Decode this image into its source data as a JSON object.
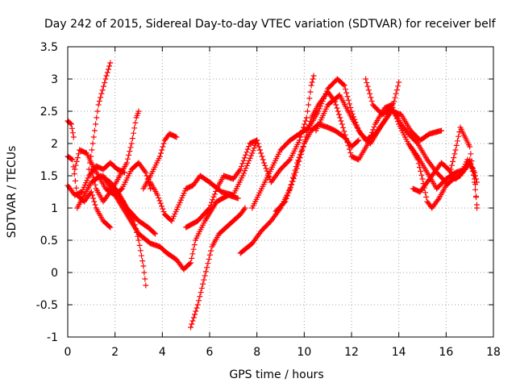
{
  "chart_data": {
    "type": "scatter",
    "title": "Day 242 of 2015, Sidereal Day-to-day VTEC variation (SDTVAR) for receiver belf",
    "xlabel": "GPS time / hours",
    "ylabel": "SDTVAR / TECUs",
    "xlim": [
      0,
      18
    ],
    "ylim": [
      -1,
      3.5
    ],
    "xticks": [
      "0",
      "2",
      "4",
      "6",
      "8",
      "10",
      "12",
      "14",
      "16",
      "18"
    ],
    "yticks": [
      "-1",
      "-0.5",
      "0",
      "0.5",
      "1",
      "1.5",
      "2",
      "2.5",
      "3",
      "3.5"
    ],
    "grid": true,
    "legend": "none",
    "marker": "plus",
    "color": "#ff0000",
    "series": [
      {
        "points": [
          [
            0.0,
            1.8
          ],
          [
            0.2,
            1.75
          ],
          [
            0.4,
            1.2
          ],
          [
            0.7,
            1.1
          ],
          [
            1.0,
            1.25
          ],
          [
            1.2,
            1.0
          ],
          [
            1.5,
            0.8
          ],
          [
            1.8,
            0.7
          ]
        ]
      },
      {
        "points": [
          [
            0.0,
            1.35
          ],
          [
            0.3,
            1.2
          ],
          [
            0.6,
            1.25
          ],
          [
            0.9,
            1.5
          ],
          [
            1.2,
            1.65
          ],
          [
            1.5,
            1.6
          ],
          [
            1.8,
            1.7
          ],
          [
            2.1,
            1.6
          ],
          [
            2.4,
            1.55
          ]
        ]
      },
      {
        "points": [
          [
            0.0,
            2.35
          ],
          [
            0.15,
            2.3
          ],
          [
            0.25,
            2.1
          ]
        ]
      },
      {
        "points": [
          [
            0.3,
            1.6
          ],
          [
            0.5,
            1.9
          ],
          [
            0.8,
            1.85
          ],
          [
            1.0,
            1.7
          ],
          [
            1.3,
            1.5
          ],
          [
            1.6,
            1.3
          ],
          [
            2.0,
            1.2
          ],
          [
            2.3,
            1.3
          ],
          [
            2.7,
            1.6
          ],
          [
            3.0,
            1.7
          ],
          [
            3.3,
            1.55
          ],
          [
            3.5,
            1.3
          ]
        ]
      },
      {
        "points": [
          [
            0.9,
            1.6
          ],
          [
            1.1,
            2.1
          ],
          [
            1.3,
            2.6
          ],
          [
            1.6,
            3.0
          ],
          [
            1.8,
            3.25
          ]
        ]
      },
      {
        "points": [
          [
            1.0,
            1.6
          ],
          [
            1.2,
            1.3
          ],
          [
            1.5,
            1.1
          ],
          [
            1.9,
            1.3
          ],
          [
            2.2,
            1.5
          ],
          [
            2.5,
            1.7
          ],
          [
            2.7,
            2.0
          ],
          [
            2.9,
            2.4
          ],
          [
            3.0,
            2.5
          ]
        ]
      },
      {
        "points": [
          [
            0.4,
            1.0
          ],
          [
            0.7,
            1.2
          ],
          [
            1.0,
            1.4
          ],
          [
            1.4,
            1.5
          ],
          [
            1.8,
            1.4
          ],
          [
            2.2,
            1.2
          ],
          [
            2.5,
            1.0
          ],
          [
            2.8,
            0.8
          ],
          [
            3.0,
            0.5
          ],
          [
            3.2,
            0.1
          ],
          [
            3.3,
            -0.2
          ]
        ]
      },
      {
        "points": [
          [
            1.5,
            1.5
          ],
          [
            2.0,
            1.2
          ],
          [
            2.5,
            0.9
          ],
          [
            3.0,
            0.6
          ],
          [
            3.5,
            0.45
          ],
          [
            3.9,
            0.4
          ],
          [
            4.2,
            0.3
          ],
          [
            4.6,
            0.2
          ],
          [
            4.9,
            0.05
          ],
          [
            5.2,
            0.15
          ],
          [
            5.4,
            0.5
          ],
          [
            5.8,
            0.8
          ],
          [
            6.3,
            1.1
          ],
          [
            6.8,
            1.2
          ],
          [
            7.2,
            1.15
          ]
        ]
      },
      {
        "points": [
          [
            2.0,
            1.3
          ],
          [
            2.5,
            1.0
          ],
          [
            3.0,
            0.8
          ],
          [
            3.4,
            0.7
          ],
          [
            3.7,
            0.6
          ]
        ]
      },
      {
        "points": [
          [
            3.2,
            1.3
          ],
          [
            3.5,
            1.5
          ],
          [
            3.9,
            1.8
          ],
          [
            4.1,
            2.05
          ],
          [
            4.3,
            2.15
          ],
          [
            4.6,
            2.1
          ]
        ]
      },
      {
        "points": [
          [
            3.5,
            1.4
          ],
          [
            3.8,
            1.2
          ],
          [
            4.1,
            0.9
          ],
          [
            4.4,
            0.8
          ],
          [
            4.7,
            1.05
          ],
          [
            5.0,
            1.3
          ],
          [
            5.3,
            1.35
          ],
          [
            5.6,
            1.5
          ],
          [
            6.0,
            1.4
          ],
          [
            6.5,
            1.25
          ],
          [
            7.0,
            1.2
          ],
          [
            7.4,
            1.5
          ],
          [
            7.8,
            1.85
          ],
          [
            8.0,
            2.05
          ]
        ]
      },
      {
        "points": [
          [
            5.2,
            -0.85
          ],
          [
            5.5,
            -0.5
          ],
          [
            5.8,
            -0.05
          ],
          [
            6.1,
            0.4
          ],
          [
            6.4,
            0.6
          ],
          [
            6.7,
            0.7
          ],
          [
            7.0,
            0.8
          ],
          [
            7.3,
            0.9
          ],
          [
            7.5,
            1.0
          ]
        ]
      },
      {
        "points": [
          [
            5.0,
            0.7
          ],
          [
            5.5,
            0.8
          ],
          [
            6.0,
            1.0
          ],
          [
            6.3,
            1.3
          ],
          [
            6.6,
            1.5
          ],
          [
            7.0,
            1.45
          ],
          [
            7.3,
            1.6
          ],
          [
            7.7,
            2.0
          ],
          [
            8.0,
            2.05
          ],
          [
            8.3,
            1.7
          ],
          [
            8.6,
            1.4
          ],
          [
            9.0,
            1.6
          ],
          [
            9.4,
            1.75
          ],
          [
            9.8,
            2.05
          ],
          [
            10.1,
            2.4
          ],
          [
            10.3,
            2.9
          ],
          [
            10.4,
            3.05
          ]
        ]
      },
      {
        "points": [
          [
            7.3,
            0.3
          ],
          [
            7.8,
            0.45
          ],
          [
            8.2,
            0.65
          ],
          [
            8.6,
            0.8
          ],
          [
            9.0,
            1.0
          ],
          [
            9.4,
            1.3
          ],
          [
            9.7,
            1.7
          ],
          [
            10.0,
            2.0
          ],
          [
            10.3,
            2.2
          ],
          [
            10.6,
            2.3
          ],
          [
            11.0,
            2.25
          ],
          [
            11.3,
            2.2
          ],
          [
            11.7,
            2.1
          ],
          [
            12.0,
            1.95
          ],
          [
            12.3,
            2.05
          ]
        ]
      },
      {
        "points": [
          [
            7.8,
            1.0
          ],
          [
            8.2,
            1.3
          ],
          [
            8.6,
            1.6
          ],
          [
            9.0,
            1.9
          ],
          [
            9.4,
            2.05
          ],
          [
            9.8,
            2.15
          ],
          [
            10.2,
            2.25
          ],
          [
            10.6,
            2.5
          ],
          [
            11.0,
            2.85
          ],
          [
            11.4,
            3.0
          ],
          [
            11.7,
            2.9
          ],
          [
            12.0,
            2.5
          ],
          [
            12.3,
            2.2
          ],
          [
            12.6,
            2.05
          ],
          [
            13.0,
            2.15
          ],
          [
            13.4,
            2.35
          ],
          [
            13.8,
            2.65
          ],
          [
            14.0,
            2.95
          ]
        ]
      },
      {
        "points": [
          [
            8.8,
            0.95
          ],
          [
            9.2,
            1.1
          ],
          [
            9.6,
            1.5
          ],
          [
            10.0,
            2.0
          ],
          [
            10.3,
            2.4
          ],
          [
            10.6,
            2.6
          ],
          [
            11.0,
            2.8
          ],
          [
            11.3,
            2.65
          ],
          [
            11.6,
            2.3
          ],
          [
            12.0,
            1.8
          ],
          [
            12.3,
            1.75
          ],
          [
            12.7,
            2.0
          ],
          [
            13.0,
            2.3
          ],
          [
            13.4,
            2.55
          ],
          [
            13.7,
            2.6
          ],
          [
            14.0,
            2.3
          ],
          [
            14.4,
            2.0
          ],
          [
            14.8,
            1.8
          ],
          [
            15.2,
            1.55
          ],
          [
            15.6,
            1.3
          ],
          [
            16.0,
            1.45
          ],
          [
            16.4,
            1.55
          ],
          [
            16.8,
            1.6
          ],
          [
            17.0,
            1.75
          ],
          [
            17.2,
            1.45
          ]
        ]
      },
      {
        "points": [
          [
            10.5,
            2.2
          ],
          [
            11.0,
            2.6
          ],
          [
            11.5,
            2.75
          ],
          [
            12.0,
            2.4
          ],
          [
            12.4,
            2.15
          ],
          [
            12.8,
            2.0
          ],
          [
            13.3,
            2.3
          ],
          [
            13.7,
            2.5
          ],
          [
            14.1,
            2.45
          ],
          [
            14.5,
            2.2
          ],
          [
            14.9,
            2.05
          ],
          [
            15.3,
            2.15
          ],
          [
            15.8,
            2.2
          ]
        ]
      },
      {
        "points": [
          [
            12.6,
            3.0
          ],
          [
            12.9,
            2.6
          ],
          [
            13.3,
            2.45
          ],
          [
            13.7,
            2.55
          ],
          [
            14.1,
            2.3
          ],
          [
            14.4,
            2.15
          ],
          [
            14.8,
            2.0
          ],
          [
            15.2,
            1.75
          ],
          [
            15.6,
            1.55
          ],
          [
            16.0,
            1.4
          ]
        ]
      },
      {
        "points": [
          [
            14.5,
            1.95
          ],
          [
            14.8,
            1.75
          ],
          [
            15.0,
            1.45
          ],
          [
            15.2,
            1.1
          ],
          [
            15.4,
            1.0
          ],
          [
            15.7,
            1.15
          ],
          [
            16.0,
            1.35
          ],
          [
            16.3,
            1.45
          ],
          [
            16.6,
            1.5
          ],
          [
            16.9,
            1.75
          ],
          [
            17.2,
            1.55
          ],
          [
            17.3,
            1.0
          ]
        ]
      },
      {
        "points": [
          [
            14.6,
            1.3
          ],
          [
            14.9,
            1.25
          ],
          [
            15.2,
            1.4
          ],
          [
            15.5,
            1.55
          ],
          [
            15.8,
            1.7
          ],
          [
            16.1,
            1.6
          ],
          [
            16.4,
            1.45
          ],
          [
            16.7,
            1.55
          ],
          [
            17.0,
            1.7
          ],
          [
            17.2,
            1.55
          ],
          [
            17.3,
            1.4
          ]
        ]
      },
      {
        "points": [
          [
            16.2,
            1.6
          ],
          [
            16.4,
            1.9
          ],
          [
            16.6,
            2.25
          ],
          [
            16.8,
            2.1
          ],
          [
            17.0,
            1.95
          ],
          [
            17.2,
            1.4
          ],
          [
            17.3,
            1.05
          ]
        ]
      }
    ]
  }
}
